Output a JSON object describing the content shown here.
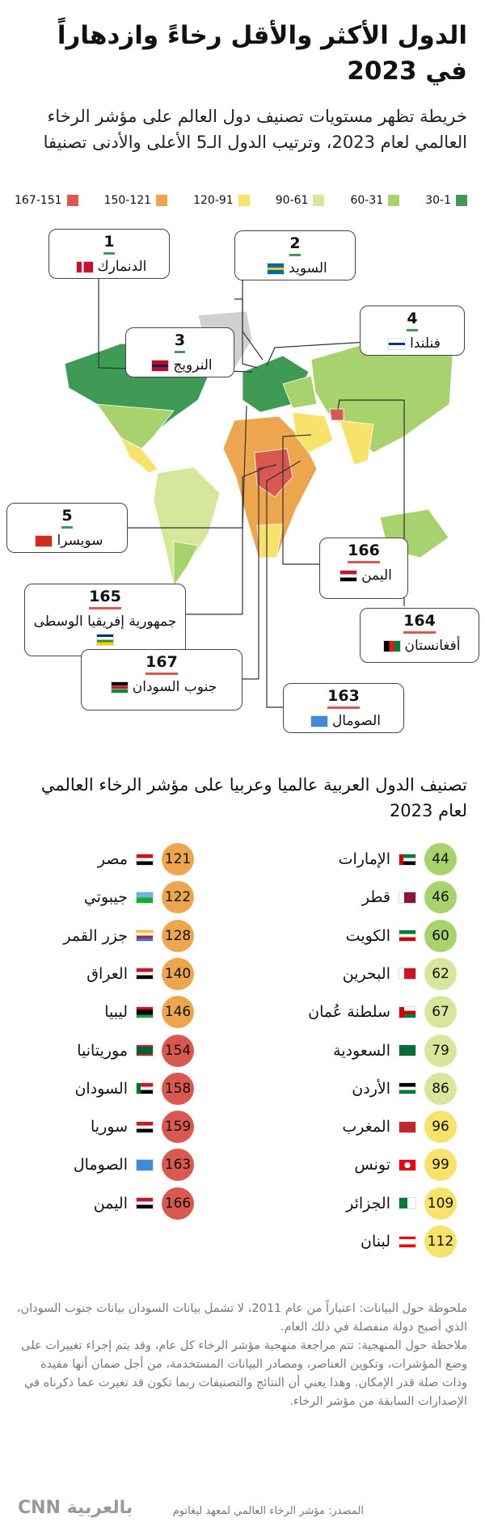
{
  "header": {
    "title": "الدول الأكثر والأقل رخاءً وازدهاراً في 2023"
  },
  "map_section": {
    "subtitle": "خريطة تظهر مستويات تصنيف دول العالم على مؤشر الرخاء العالمي لعام 2023، وترتيب الدول الـ5 الأعلى والأدنى تصنيفا",
    "legend": [
      {
        "label": "30-1",
        "color": "#3f9a55"
      },
      {
        "label": "60-31",
        "color": "#a8d26d"
      },
      {
        "label": "90-61",
        "color": "#d6e79b"
      },
      {
        "label": "120-91",
        "color": "#f7e26b"
      },
      {
        "label": "150-121",
        "color": "#eea64e"
      },
      {
        "label": "167-151",
        "color": "#d9584f"
      }
    ],
    "callouts": [
      {
        "rank": 1,
        "country": "الدنمارك"
      },
      {
        "rank": 2,
        "country": "السويد"
      },
      {
        "rank": 3,
        "country": "النرويج"
      },
      {
        "rank": 4,
        "country": "فنلندا"
      },
      {
        "rank": 5,
        "country": "سويسرا"
      },
      {
        "rank": 166,
        "country": "اليمن"
      },
      {
        "rank": 165,
        "country": "جمهورية إفريقيا الوسطى"
      },
      {
        "rank": 164,
        "country": "أفغانستان"
      },
      {
        "rank": 167,
        "country": "جنوب السودان"
      },
      {
        "rank": 163,
        "country": "الصومال"
      }
    ]
  },
  "arab_section": {
    "title": "تصنيف الدول العربية عالميا وعربيا على مؤشر الرخاء العالمي لعام 2023",
    "right_column": [
      {
        "rank": 44,
        "country": "الإمارات"
      },
      {
        "rank": 46,
        "country": "قطر"
      },
      {
        "rank": 60,
        "country": "الكويت"
      },
      {
        "rank": 62,
        "country": "البحرين"
      },
      {
        "rank": 67,
        "country": "سلطنة عُمان"
      },
      {
        "rank": 79,
        "country": "السعودية"
      },
      {
        "rank": 86,
        "country": "الأردن"
      },
      {
        "rank": 96,
        "country": "المغرب"
      },
      {
        "rank": 99,
        "country": "تونس"
      },
      {
        "rank": 109,
        "country": "الجزائر"
      },
      {
        "rank": 112,
        "country": "لبنان"
      }
    ],
    "left_column": [
      {
        "rank": 121,
        "country": "مصر"
      },
      {
        "rank": 122,
        "country": "جيبوتي"
      },
      {
        "rank": 128,
        "country": "جزر القمر"
      },
      {
        "rank": 140,
        "country": "العراق"
      },
      {
        "rank": 146,
        "country": "ليبيا"
      },
      {
        "rank": 154,
        "country": "موريتانيا"
      },
      {
        "rank": 158,
        "country": "السودان"
      },
      {
        "rank": 159,
        "country": "سوريا"
      },
      {
        "rank": 163,
        "country": "الصومال"
      },
      {
        "rank": 166,
        "country": "اليمن"
      }
    ]
  },
  "notes": [
    "ملحوظة حول البيانات: اعتباراً من عام 2011، لا تشمل بيانات السودان بيانات جنوب السودان، الذي أصبح دولة منفصلة في ذلك العام.",
    "ملاحظة حول المنهجية: تتم مراجعة منهجية مؤشر الرخاء كل عام، وقد يتم إجراء تغييرات على وضع المؤشرات، وتكوين العناصر، ومصادر البيانات المستخدمة، من أجل ضمان أنها مفيدة وذات صلة قدر الإمكان. وهذا يعني أن النتائج والتصنيفات ربما تكون قد تغيرت عما ذكرناه في الإصدارات السابقة من مؤشر الرخاء."
  ],
  "source": "المصدر: مؤشر الرخاء العالمي لمعهد ليغاتوم",
  "logo": "CNN بالعربية"
}
